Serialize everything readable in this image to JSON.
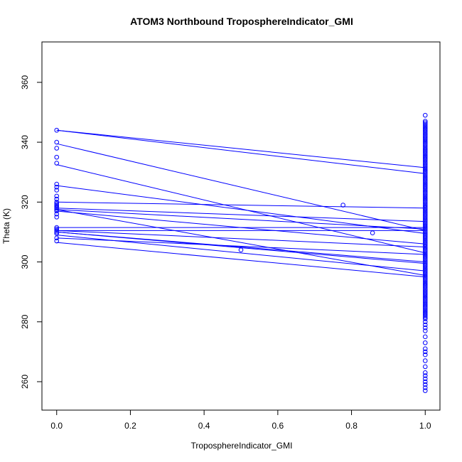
{
  "chart_data": {
    "type": "scatter",
    "title": "ATOM3 Northbound TroposphereIndicator_GMI",
    "xlabel": "TroposphereIndicator_GMI",
    "ylabel": "Theta (K)",
    "xlim": [
      -0.04,
      1.04
    ],
    "ylim": [
      250.5,
      373.5
    ],
    "x_ticks": [
      "0.0",
      "0.2",
      "0.4",
      "0.6",
      "0.8",
      "1.0"
    ],
    "y_ticks": [
      "260",
      "280",
      "300",
      "320",
      "340",
      "360"
    ],
    "color": "#0000ff",
    "grid": false,
    "legend": "none",
    "segments": [
      {
        "x": [
          0,
          1
        ],
        "y": [
          344,
          331.5
        ]
      },
      {
        "x": [
          0,
          1
        ],
        "y": [
          344,
          329.5
        ]
      },
      {
        "x": [
          0,
          1
        ],
        "y": [
          339.5,
          310.5
        ]
      },
      {
        "x": [
          0,
          1
        ],
        "y": [
          332.5,
          303
        ]
      },
      {
        "x": [
          0,
          1
        ],
        "y": [
          325.5,
          309.5
        ]
      },
      {
        "x": [
          0,
          1
        ],
        "y": [
          320,
          318
        ]
      },
      {
        "x": [
          0,
          1
        ],
        "y": [
          318,
          313.5
        ]
      },
      {
        "x": [
          0,
          1
        ],
        "y": [
          317.5,
          311
        ]
      },
      {
        "x": [
          0,
          1
        ],
        "y": [
          317,
          306
        ]
      },
      {
        "x": [
          0,
          1
        ],
        "y": [
          317.5,
          295.5
        ]
      },
      {
        "x": [
          0,
          1
        ],
        "y": [
          311.5,
          311.5
        ]
      },
      {
        "x": [
          0,
          1
        ],
        "y": [
          310.5,
          310.5
        ]
      },
      {
        "x": [
          0,
          1
        ],
        "y": [
          310.5,
          305
        ]
      },
      {
        "x": [
          0,
          1
        ],
        "y": [
          310,
          300
        ]
      },
      {
        "x": [
          0,
          1
        ],
        "y": [
          310,
          299.5
        ]
      },
      {
        "x": [
          0,
          1
        ],
        "y": [
          309,
          297
        ]
      },
      {
        "x": [
          0,
          1
        ],
        "y": [
          308,
          302.5
        ]
      },
      {
        "x": [
          0,
          1
        ],
        "y": [
          306.5,
          295
        ]
      }
    ],
    "points_x0": [
      344,
      340,
      338,
      335,
      333,
      326,
      325,
      324,
      322,
      321,
      320,
      319.5,
      319,
      318.5,
      318,
      317.5,
      317,
      316,
      315,
      311.5,
      311,
      310.5,
      310,
      309.5,
      308,
      307
    ],
    "points_mid": [
      {
        "x": 0.5,
        "y": 304
      },
      {
        "x": 0.777,
        "y": 319
      },
      {
        "x": 0.857,
        "y": 309.7
      }
    ],
    "points_x1": {
      "y_min": 257,
      "y_max": 349,
      "extra_low": [
        257,
        258,
        259,
        260,
        261,
        262,
        263,
        265,
        267,
        269,
        270,
        271,
        273,
        275,
        277,
        278,
        279,
        280
      ],
      "dense_from": 281,
      "dense_to": 347
    }
  }
}
